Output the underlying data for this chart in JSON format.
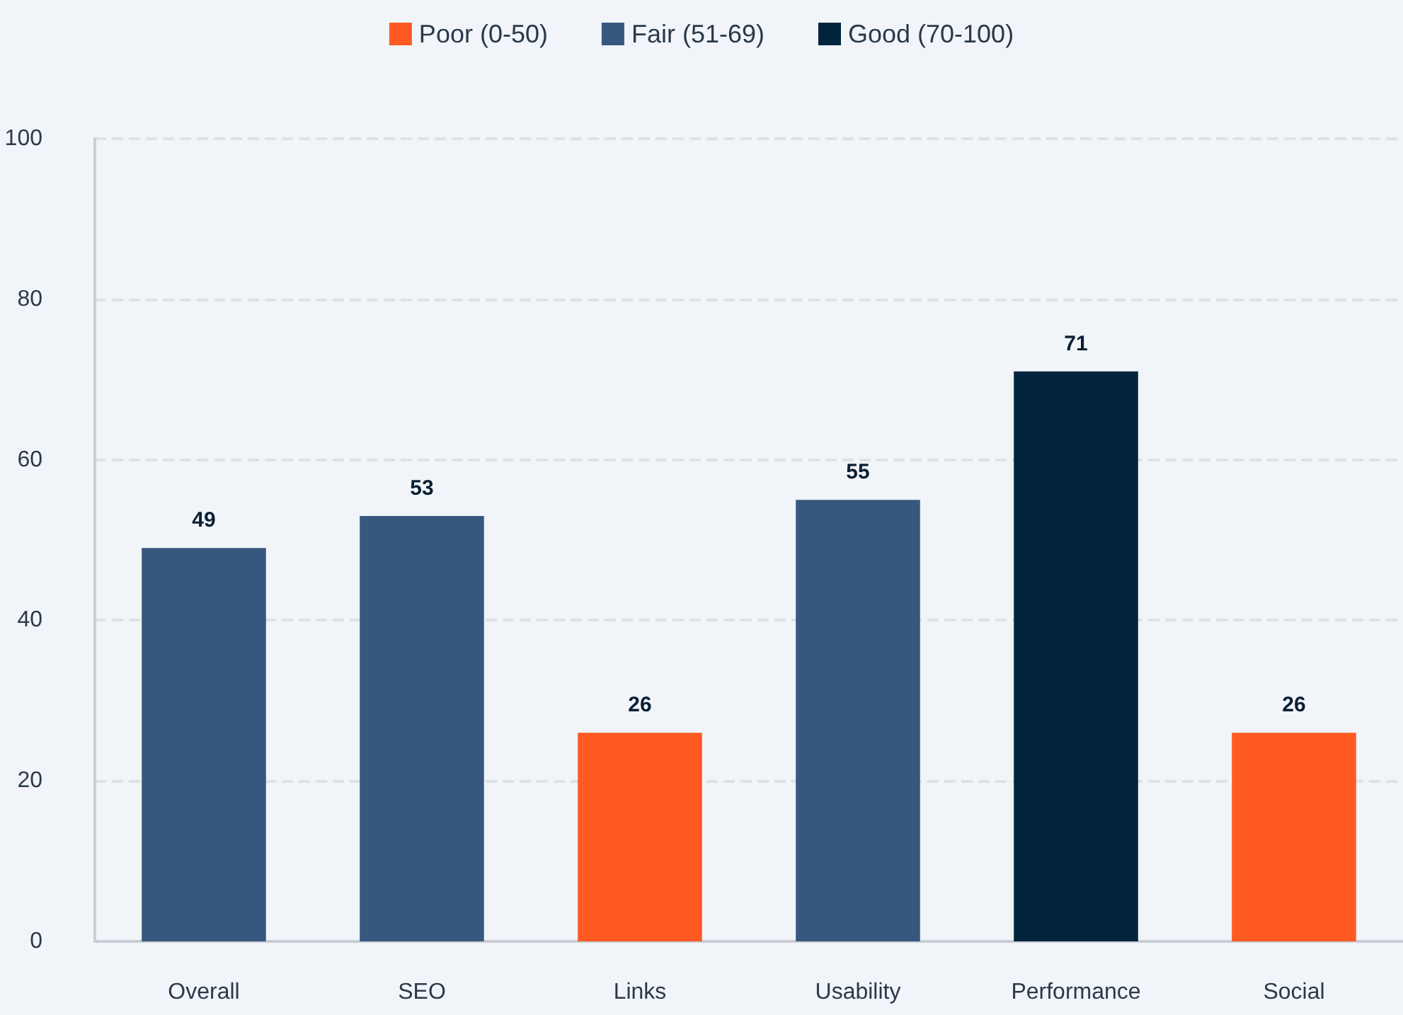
{
  "chart_data": {
    "type": "bar",
    "categories": [
      "Overall",
      "SEO",
      "Links",
      "Usability",
      "Performance",
      "Social"
    ],
    "series": [
      {
        "name": "Poor (0-50)",
        "color": "#ff5a22",
        "values": [
          null,
          null,
          26,
          null,
          null,
          26
        ]
      },
      {
        "name": "Fair (51-69)",
        "color": "#37587e",
        "values": [
          49,
          53,
          null,
          55,
          null,
          null
        ]
      },
      {
        "name": "Good (70-100)",
        "color": "#02243c",
        "values": [
          null,
          null,
          null,
          null,
          71,
          null
        ]
      }
    ],
    "stacked": true,
    "ylim": [
      0,
      100
    ],
    "yticks": [
      0,
      20,
      40,
      60,
      80,
      100
    ],
    "grid": "y",
    "legend": "top",
    "data_labels": true
  }
}
